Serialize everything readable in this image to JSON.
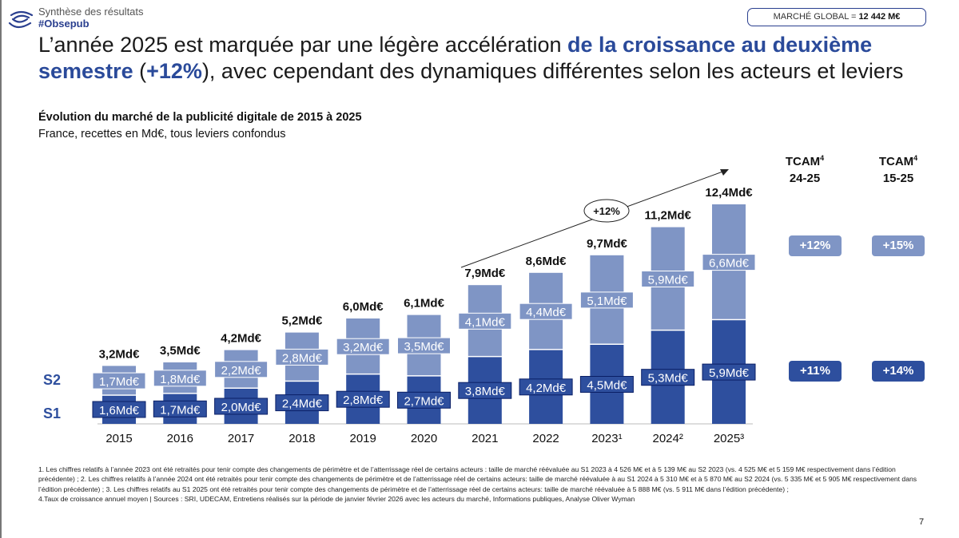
{
  "header": {
    "section": "Synthèse des résultats",
    "hashtag": "#Obsepub",
    "market_badge_label": "MARCHÉ GLOBAL = ",
    "market_badge_value": "12 442 M€"
  },
  "title": {
    "part1": "L’année 2025 est marquée par une légère accélération ",
    "highlight1": "de la croissance au deuxième semestre",
    "part2": " (",
    "highlight2": "+12%",
    "part3": "), avec cependant des dynamiques différentes selon les acteurs et leviers"
  },
  "chart_data": {
    "type": "bar",
    "stacked": true,
    "title": "Évolution du marché de la publicité digitale de 2015 à 2025",
    "subtitle": "France, recettes en Md€, tous leviers confondus",
    "categories": [
      "2015",
      "2016",
      "2017",
      "2018",
      "2019",
      "2020",
      "2021",
      "2022",
      "2023¹",
      "2024²",
      "2025³"
    ],
    "series": [
      {
        "name": "S1",
        "color": "#2e4f9e",
        "values": [
          1.6,
          1.7,
          2.0,
          2.4,
          2.8,
          2.7,
          3.8,
          4.2,
          4.5,
          5.3,
          5.9
        ],
        "labels": [
          "1,6Md€",
          "1,7Md€",
          "2,0Md€",
          "2,4Md€",
          "2,8Md€",
          "2,7Md€",
          "3,8Md€",
          "4,2Md€",
          "4,5Md€",
          "5,3Md€",
          "5,9Md€"
        ]
      },
      {
        "name": "S2",
        "color": "#7f95c5",
        "values": [
          1.7,
          1.8,
          2.2,
          2.8,
          3.2,
          3.5,
          4.1,
          4.4,
          5.1,
          5.9,
          6.6
        ],
        "labels": [
          "1,7Md€",
          "1,8Md€",
          "2,2Md€",
          "2,8Md€",
          "3,2Md€",
          "3,5Md€",
          "4,1Md€",
          "4,4Md€",
          "5,1Md€",
          "5,9Md€",
          "6,6Md€"
        ]
      }
    ],
    "totals": [
      3.2,
      3.5,
      4.2,
      5.2,
      6.0,
      6.1,
      7.9,
      8.6,
      9.7,
      11.2,
      12.4
    ],
    "total_labels": [
      "3,2Md€",
      "3,5Md€",
      "4,2Md€",
      "5,2Md€",
      "6,0Md€",
      "6,1Md€",
      "7,9Md€",
      "8,6Md€",
      "9,7Md€",
      "11,2Md€",
      "12,4Md€"
    ],
    "annotation": "+12%",
    "legend": "left"
  },
  "tcam": {
    "col1": {
      "label": "TCAM",
      "sup": "4",
      "period": "24-25",
      "s2": "+12%",
      "s1": "+11%"
    },
    "col2": {
      "label": "TCAM",
      "sup": "4",
      "period": "15-25",
      "s2": "+15%",
      "s1": "+14%"
    }
  },
  "footnotes": "1. Les chiffres relatifs à l’année 2023 ont été retraités pour tenir compte des changements de périmètre et de l’atterrissage réel de certains acteurs : taille de marché réévaluée au S1 2023 à 4 526 M€ et à 5 139 M€ au S2 2023 (vs. 4 525 M€ et 5 159 M€ respectivement dans l’édition précédente) ; 2. Les chiffres relatifs à l’année 2024 ont été retraités pour tenir compte des changements de périmètre et de l’atterrissage réel de certains acteurs: taille de marché réévaluée à au S1 2024 à  5 310 M€ et à 5 870 M€ au S2 2024 (vs. 5 335 M€ et 5 905 M€ respectivement dans l’édition précédente) ; 3. Les chiffres relatifs au S1 2025 ont été retraités pour tenir compte des changements de périmètre et de l’atterrissage réel de certains acteurs: taille de marché réévaluée à 5 888 M€ (vs. 5 911 M€ dans l’édition précédente) ;",
  "sources": "4.Taux de croissance annuel moyen | Sources : SRI, UDECAM, Entretiens réalisés sur la période de janvier février 2026 avec les acteurs du marché, Informations publiques, Analyse Oliver Wyman",
  "page_number": "7"
}
